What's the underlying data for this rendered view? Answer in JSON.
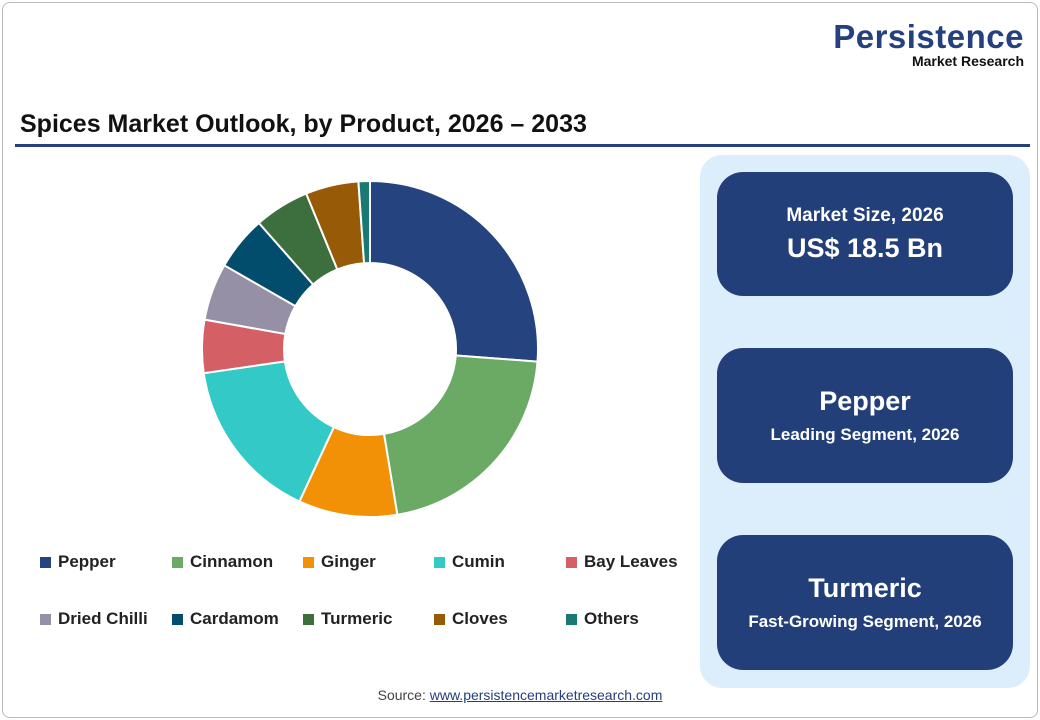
{
  "logo": {
    "name": "Persistence",
    "sub": "Market Research"
  },
  "title": "Spices Market Outlook, by Product, 2026 – 2033",
  "chart_data": {
    "type": "pie",
    "donut": true,
    "title": "Spices Market Outlook, by Product, 2026 – 2033",
    "unit": "%",
    "legend_position": "bottom",
    "categories": [
      "Pepper",
      "Cinnamon",
      "Ginger",
      "Cumin",
      "Bay Leaves",
      "Dried Chilli",
      "Cardamom",
      "Turmeric",
      "Cloves",
      "Others"
    ],
    "values": [
      26.2,
      21.2,
      9.5,
      15.8,
      5.1,
      5.5,
      5.2,
      5.3,
      5.1,
      1.1
    ],
    "colors": [
      "#24437f",
      "#6aaa64",
      "#f29106",
      "#33c9c6",
      "#d45f64",
      "#9590a6",
      "#024d6b",
      "#3d6e3e",
      "#975a07",
      "#1a7a73"
    ]
  },
  "panel": {
    "market_size_label": "Market Size, 2026",
    "market_size_value": "US$ 18.5 Bn",
    "leading_value": "Pepper",
    "leading_label": "Leading Segment, 2026",
    "fast_value": "Turmeric",
    "fast_label": "Fast-Growing Segment, 2026",
    "bg_color": "#dceefb",
    "card_color": "#233f7a"
  },
  "source": {
    "label": "Source:",
    "link": "www.persistencemarketresearch.com"
  }
}
